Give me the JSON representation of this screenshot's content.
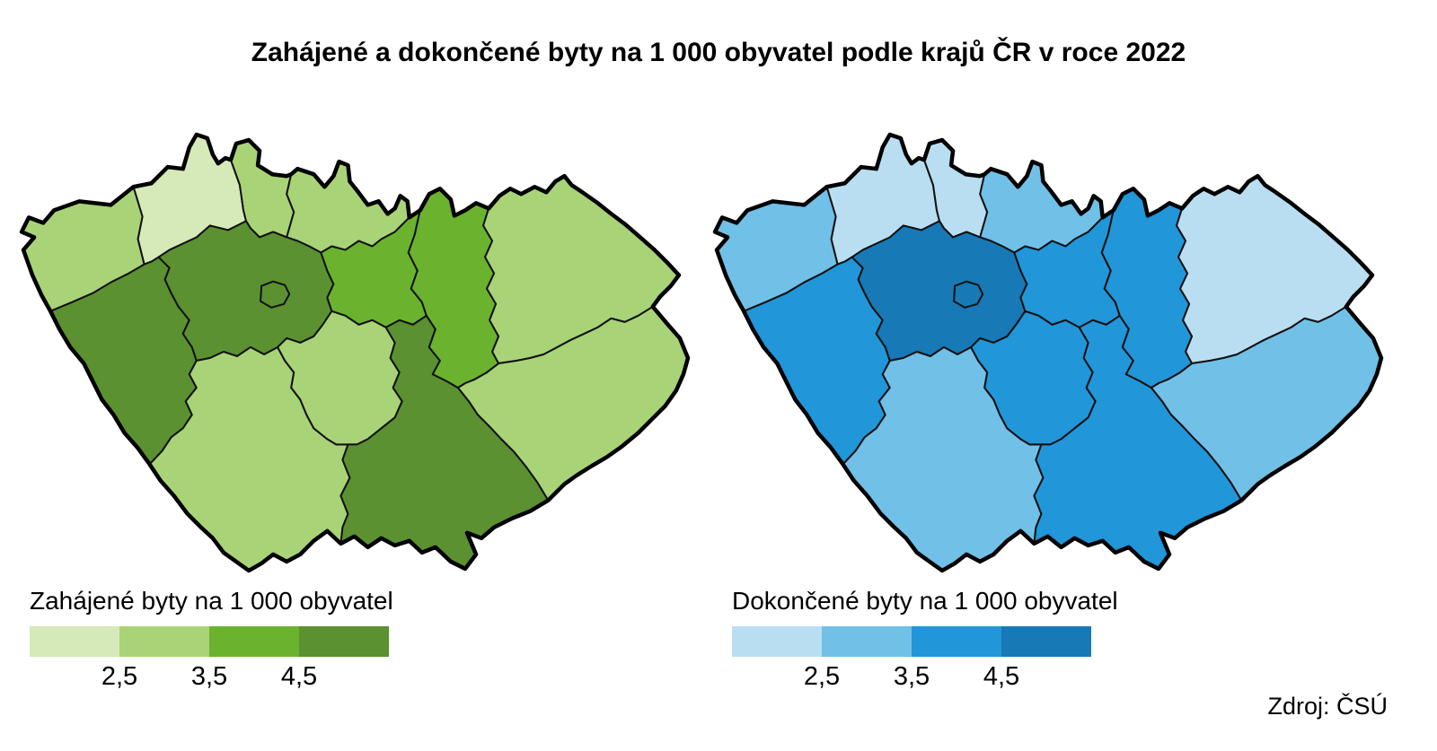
{
  "title": "Zahájené a dokončené byty na 1 000 obyvatel podle krajů ČR v roce 2022",
  "source": "Zdroj: ČSÚ",
  "chart_data": [
    {
      "type": "choropleth",
      "title": "Zahájené byty na 1 000 obyvatel",
      "breaks": [
        "2,5",
        "3,5",
        "4,5"
      ],
      "breaks_numeric": [
        2.5,
        3.5,
        4.5
      ],
      "colors": [
        "#d6e9b8",
        "#a9d377",
        "#6bb32f",
        "#5b9130"
      ],
      "legend_position": "bottom-left",
      "region_bins": {
        "praha": 4,
        "stredocesky": 4,
        "jihocesky": 2,
        "plzensky": 4,
        "karlovarsky": 2,
        "ustecky": 1,
        "liberecky": 2,
        "kralovehradecky": 2,
        "pardubicky": 3,
        "vysocina": 2,
        "jihomoravsky": 4,
        "olomoucky": 3,
        "zlinsky": 2,
        "moravskoslezsky": 2
      }
    },
    {
      "type": "choropleth",
      "title": "Dokončené byty na 1 000 obyvatel",
      "breaks": [
        "2,5",
        "3,5",
        "4,5"
      ],
      "breaks_numeric": [
        2.5,
        3.5,
        4.5
      ],
      "colors": [
        "#b9def1",
        "#71c0e7",
        "#2196d9",
        "#1779b5"
      ],
      "legend_position": "bottom-right",
      "region_bins": {
        "praha": 4,
        "stredocesky": 4,
        "jihocesky": 2,
        "plzensky": 3,
        "karlovarsky": 2,
        "ustecky": 1,
        "liberecky": 1,
        "kralovehradecky": 2,
        "pardubicky": 3,
        "vysocina": 3,
        "jihomoravsky": 3,
        "olomoucky": 3,
        "zlinsky": 2,
        "moravskoslezsky": 1
      }
    }
  ]
}
